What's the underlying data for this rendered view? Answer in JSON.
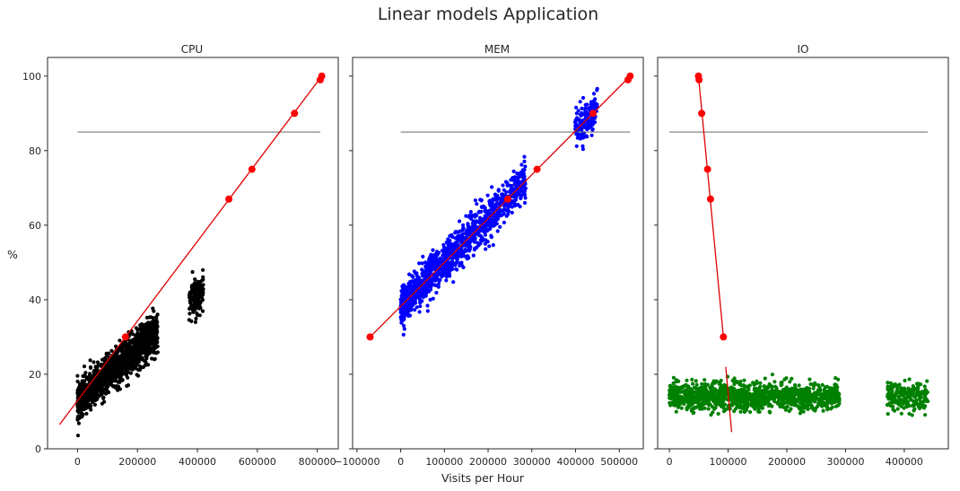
{
  "figure": {
    "suptitle": "Linear models Application",
    "xlabel": "Visits per Hour",
    "ylabel": "%"
  },
  "colors": {
    "cpu_points": "#000000",
    "mem_points": "#0000ff",
    "io_points": "#008000",
    "fit_line": "#e00000",
    "prediction_points": "#ff0000",
    "threshold_line": "#555555"
  },
  "chart_data": [
    {
      "type": "scatter",
      "title": "CPU",
      "xlabel": "",
      "ylabel": "%",
      "xlim": [
        -100000,
        870000
      ],
      "ylim": [
        0,
        105
      ],
      "x_ticks": [
        "0",
        "200000",
        "400000",
        "600000",
        "800000"
      ],
      "x_tick_values": [
        0,
        200000,
        400000,
        600000,
        800000
      ],
      "y_ticks": [
        "0",
        "20",
        "40",
        "60",
        "80",
        "100"
      ],
      "y_tick_values": [
        0,
        20,
        40,
        60,
        80,
        100
      ],
      "threshold": {
        "y": 85,
        "x_range": [
          0,
          810000
        ]
      },
      "fit_line": [
        [
          -60000,
          6.5
        ],
        [
          815000,
          100
        ]
      ],
      "prediction_points": [
        [
          160000,
          30
        ],
        [
          505000,
          67
        ],
        [
          582000,
          75
        ],
        [
          724000,
          90
        ],
        [
          810000,
          99
        ],
        [
          815000,
          100
        ]
      ],
      "scatter_model": {
        "x_range": [
          0,
          420000
        ],
        "slope_per_1000": 0.0715,
        "intercept": 12.5,
        "noise": 2.6,
        "color_key": "cpu_points"
      }
    },
    {
      "type": "scatter",
      "title": "MEM",
      "xlabel": "",
      "ylabel": "",
      "xlim": [
        -110000,
        555000
      ],
      "ylim": [
        0,
        105
      ],
      "x_ticks": [
        "−100000",
        "0",
        "100000",
        "200000",
        "300000",
        "400000",
        "500000"
      ],
      "x_tick_values": [
        -100000,
        0,
        100000,
        200000,
        300000,
        400000,
        500000
      ],
      "y_ticks": [],
      "y_tick_values": [
        0,
        20,
        40,
        60,
        80,
        100
      ],
      "threshold": {
        "y": 85,
        "x_range": [
          0,
          525000
        ]
      },
      "fit_line": [
        [
          -70000,
          30
        ],
        [
          525000,
          100
        ]
      ],
      "prediction_points": [
        [
          -70000,
          30
        ],
        [
          245000,
          67
        ],
        [
          312000,
          75
        ],
        [
          440000,
          90
        ],
        [
          520000,
          99
        ],
        [
          525000,
          100
        ]
      ],
      "scatter_model": {
        "x_range": [
          0,
          450000
        ],
        "slope_per_1000": 0.117,
        "intercept": 38.5,
        "noise": 2.6,
        "color_key": "mem_points"
      }
    },
    {
      "type": "scatter",
      "title": "IO",
      "xlabel": "",
      "ylabel": "",
      "xlim": [
        -20000,
        475000
      ],
      "ylim": [
        0,
        105
      ],
      "x_ticks": [
        "0",
        "100000",
        "200000",
        "300000",
        "400000"
      ],
      "x_tick_values": [
        0,
        100000,
        200000,
        300000,
        400000
      ],
      "y_ticks": [],
      "y_tick_values": [
        0,
        20,
        40,
        60,
        80,
        100
      ],
      "threshold": {
        "y": 85,
        "x_range": [
          0,
          440000
        ]
      },
      "fit_line": [
        [
          49500,
          100
        ],
        [
          92000,
          30
        ]
      ],
      "fit_line_2": [
        [
          96000,
          22
        ],
        [
          106000,
          4.5
        ]
      ],
      "prediction_points": [
        [
          49500,
          100
        ],
        [
          50500,
          99
        ],
        [
          55000,
          90
        ],
        [
          65000,
          75
        ],
        [
          70000,
          67
        ],
        [
          92000,
          30
        ]
      ],
      "scatter_model": {
        "x_range": [
          0,
          440000
        ],
        "slope_per_1000": 0.0,
        "intercept": 14.0,
        "noise": 1.8,
        "color_key": "io_points"
      }
    }
  ]
}
